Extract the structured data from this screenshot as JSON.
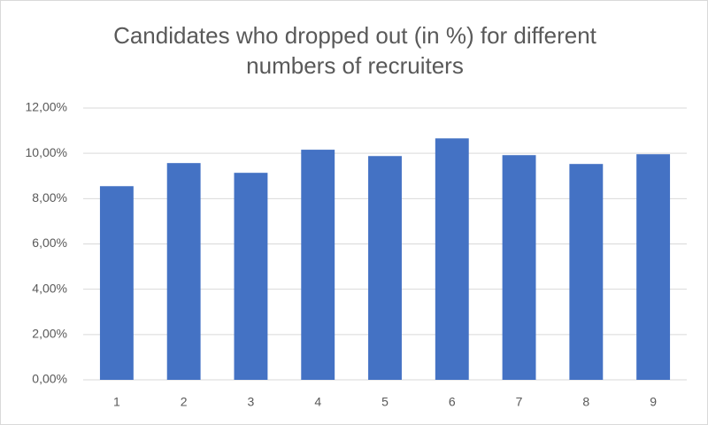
{
  "chart_data": {
    "type": "bar",
    "title": "Candidates who dropped out (in %) for different numbers of recruiters",
    "categories": [
      "1",
      "2",
      "3",
      "4",
      "5",
      "6",
      "7",
      "8",
      "9"
    ],
    "values": [
      8.55,
      9.57,
      9.14,
      10.16,
      9.88,
      10.66,
      9.92,
      9.53,
      9.96
    ],
    "color": "#4472c4",
    "ylim": [
      0,
      12
    ],
    "yticks": [
      {
        "value": 0,
        "label": "0,00%"
      },
      {
        "value": 2,
        "label": "2,00%"
      },
      {
        "value": 4,
        "label": "4,00%"
      },
      {
        "value": 6,
        "label": "6,00%"
      },
      {
        "value": 8,
        "label": "8,00%"
      },
      {
        "value": 10,
        "label": "10,00%"
      },
      {
        "value": 12,
        "label": "12,00%"
      }
    ],
    "grid": true
  }
}
